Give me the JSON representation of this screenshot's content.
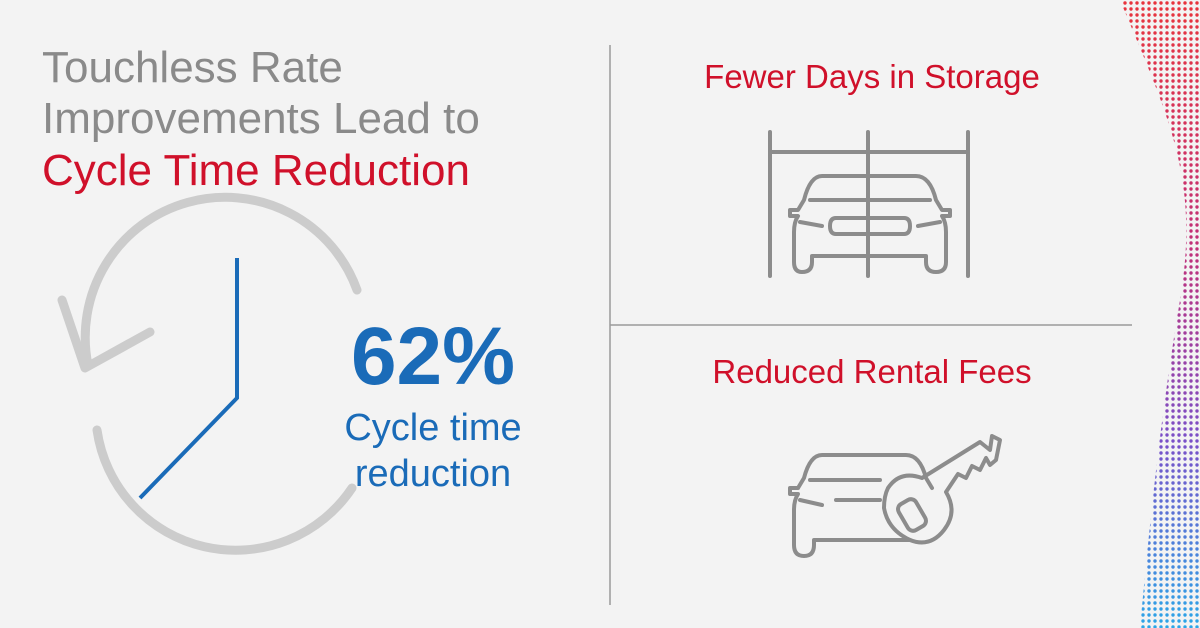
{
  "title": {
    "lines": [
      "Touchless Rate",
      "Improvements Lead to",
      "Cycle Time Reduction"
    ]
  },
  "stat": {
    "value": "62%",
    "caption": [
      "Cycle time",
      "reduction"
    ]
  },
  "benefits": [
    {
      "label": "Fewer Days in Storage"
    },
    {
      "label": "Reduced Rental Fees"
    }
  ]
}
